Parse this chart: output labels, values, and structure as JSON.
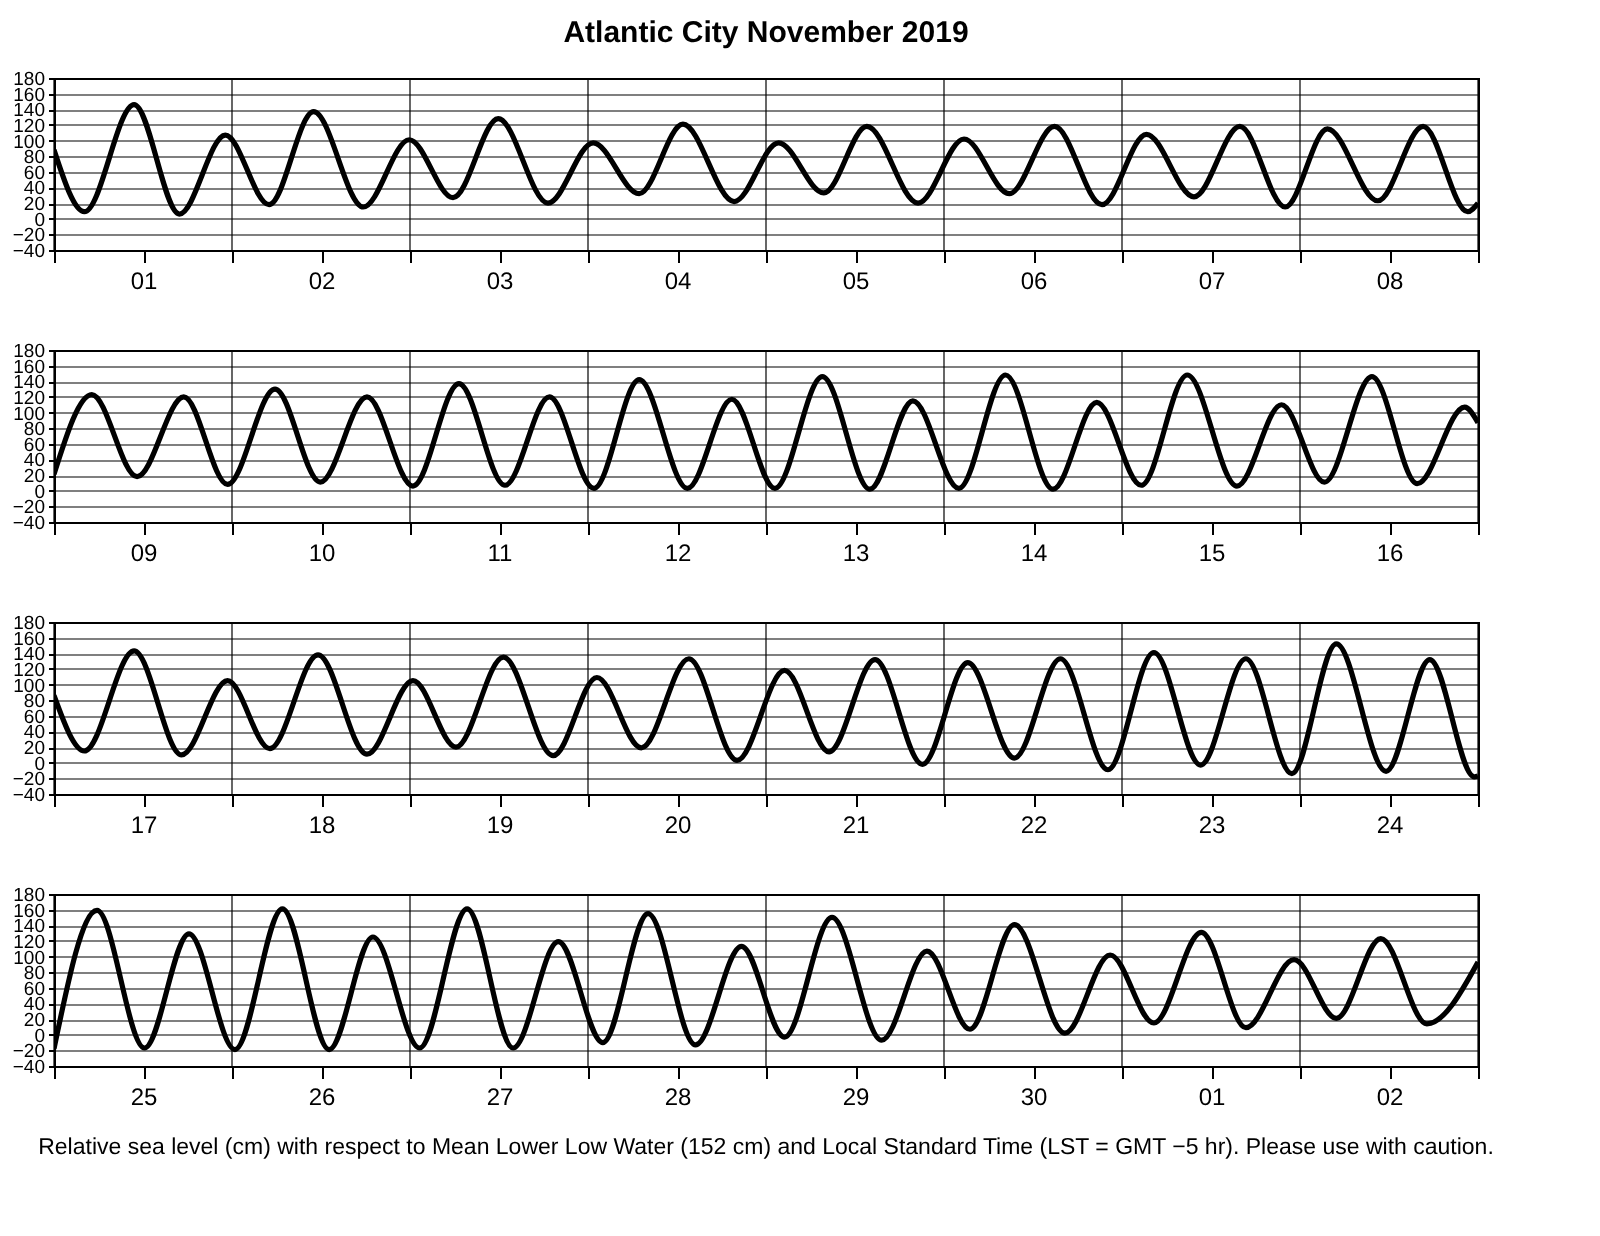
{
  "chart_data": [
    {
      "type": "line",
      "title": "Atlantic City          November   2019",
      "xlim": [
        "2019-11-01",
        "2019-11-09"
      ],
      "ylim": [
        -40,
        180
      ],
      "yticks": [
        -40,
        -20,
        0,
        20,
        40,
        60,
        80,
        100,
        120,
        140,
        160,
        180
      ],
      "grid": true,
      "xticks": [
        {
          "value": "2019-11-01",
          "label": null
        },
        {
          "value": "2019-11-01T12:00",
          "label": "01"
        },
        {
          "value": "2019-11-02",
          "label": null
        },
        {
          "value": "2019-11-02T12:00",
          "label": "02"
        },
        {
          "value": "2019-11-03",
          "label": null
        },
        {
          "value": "2019-11-03T12:00",
          "label": "03"
        },
        {
          "value": "2019-11-04",
          "label": null
        },
        {
          "value": "2019-11-04T12:00",
          "label": "04"
        },
        {
          "value": "2019-11-05",
          "label": null
        },
        {
          "value": "2019-11-05T12:00",
          "label": "05"
        },
        {
          "value": "2019-11-06",
          "label": null
        },
        {
          "value": "2019-11-06T12:00",
          "label": "06"
        },
        {
          "value": "2019-11-07",
          "label": null
        },
        {
          "value": "2019-11-07T12:00",
          "label": "07"
        },
        {
          "value": "2019-11-08",
          "label": null
        },
        {
          "value": "2019-11-08T12:00",
          "label": "08"
        },
        {
          "value": "2019-11-09",
          "label": null
        }
      ],
      "series": [
        {
          "color": "#000000",
          "x": [
            "2019-11-01T00:00",
            "2019-11-01T04:06",
            "2019-11-01T10:48",
            "2019-11-01T16:54",
            "2019-11-01T23:06",
            "2019-11-02T05:00",
            "2019-11-02T11:00",
            "2019-11-02T17:42",
            "2019-11-02T23:54",
            "2019-11-03T05:48",
            "2019-11-03T11:54",
            "2019-11-03T18:36",
            "2019-11-04T00:42",
            "2019-11-04T06:54",
            "2019-11-04T12:48",
            "2019-11-04T19:42",
            "2019-11-05T01:42",
            "2019-11-05T07:48",
            "2019-11-05T13:36",
            "2019-11-05T20:30",
            "2019-11-06T02:42",
            "2019-11-06T08:48",
            "2019-11-06T14:54",
            "2019-11-06T21:18",
            "2019-11-07T03:18",
            "2019-11-07T09:42",
            "2019-11-07T15:54",
            "2019-11-07T22:00",
            "2019-11-08T03:42",
            "2019-11-08T10:30",
            "2019-11-08T16:36",
            "2019-11-08T22:36",
            "2019-11-09T00:00"
          ],
          "values": [
            88,
            9,
            146,
            6,
            107,
            18,
            137,
            15,
            101,
            27,
            128,
            20,
            97,
            32,
            121,
            22,
            97,
            33,
            118,
            20,
            102,
            32,
            118,
            18,
            108,
            28,
            118,
            15,
            115,
            23,
            118,
            9,
            20
          ]
        }
      ]
    },
    {
      "type": "line",
      "xlim": [
        "2019-11-09",
        "2019-11-17"
      ],
      "ylim": [
        -40,
        180
      ],
      "yticks": [
        -40,
        -20,
        0,
        20,
        40,
        60,
        80,
        100,
        120,
        140,
        160,
        180
      ],
      "grid": true,
      "xticks": [
        {
          "value": "2019-11-09",
          "label": null
        },
        {
          "value": "2019-11-09T12:00",
          "label": "09"
        },
        {
          "value": "2019-11-10",
          "label": null
        },
        {
          "value": "2019-11-10T12:00",
          "label": "10"
        },
        {
          "value": "2019-11-11",
          "label": null
        },
        {
          "value": "2019-11-11T12:00",
          "label": "11"
        },
        {
          "value": "2019-11-12",
          "label": null
        },
        {
          "value": "2019-11-12T12:00",
          "label": "12"
        },
        {
          "value": "2019-11-13",
          "label": null
        },
        {
          "value": "2019-11-13T12:00",
          "label": "13"
        },
        {
          "value": "2019-11-14",
          "label": null
        },
        {
          "value": "2019-11-14T12:00",
          "label": "14"
        },
        {
          "value": "2019-11-15",
          "label": null
        },
        {
          "value": "2019-11-15T12:00",
          "label": "15"
        },
        {
          "value": "2019-11-16",
          "label": null
        },
        {
          "value": "2019-11-16T12:00",
          "label": "16"
        },
        {
          "value": "2019-11-17",
          "label": null
        }
      ],
      "series": [
        {
          "color": "#000000",
          "x": [
            "2019-11-09T00:00",
            "2019-11-09T05:06",
            "2019-11-09T11:12",
            "2019-11-09T17:30",
            "2019-11-09T23:24",
            "2019-11-10T05:48",
            "2019-11-10T11:54",
            "2019-11-10T18:12",
            "2019-11-11T00:24",
            "2019-11-11T06:36",
            "2019-11-11T12:48",
            "2019-11-11T18:48",
            "2019-11-12T00:48",
            "2019-11-12T06:54",
            "2019-11-12T13:24",
            "2019-11-12T19:24",
            "2019-11-13T01:12",
            "2019-11-13T07:36",
            "2019-11-13T14:00",
            "2019-11-13T19:48",
            "2019-11-14T02:00",
            "2019-11-14T08:18",
            "2019-11-14T14:42",
            "2019-11-14T20:36",
            "2019-11-15T02:36",
            "2019-11-15T08:48",
            "2019-11-15T15:30",
            "2019-11-15T21:30",
            "2019-11-16T03:18",
            "2019-11-16T09:42",
            "2019-11-16T15:48",
            "2019-11-16T22:12",
            "2019-11-17T00:00"
          ],
          "values": [
            21,
            123,
            18,
            120,
            8,
            130,
            11,
            120,
            6,
            137,
            7,
            120,
            3,
            142,
            3,
            117,
            3,
            146,
            2,
            115,
            3,
            148,
            2,
            113,
            7,
            148,
            6,
            110,
            11,
            146,
            9,
            107,
            87
          ]
        }
      ]
    },
    {
      "type": "line",
      "xlim": [
        "2019-11-17",
        "2019-11-25"
      ],
      "ylim": [
        -40,
        180
      ],
      "yticks": [
        -40,
        -20,
        0,
        20,
        40,
        60,
        80,
        100,
        120,
        140,
        160,
        180
      ],
      "grid": true,
      "xticks": [
        {
          "value": "2019-11-17",
          "label": null
        },
        {
          "value": "2019-11-17T12:00",
          "label": "17"
        },
        {
          "value": "2019-11-18",
          "label": null
        },
        {
          "value": "2019-11-18T12:00",
          "label": "18"
        },
        {
          "value": "2019-11-19",
          "label": null
        },
        {
          "value": "2019-11-19T12:00",
          "label": "19"
        },
        {
          "value": "2019-11-20",
          "label": null
        },
        {
          "value": "2019-11-20T12:00",
          "label": "20"
        },
        {
          "value": "2019-11-21",
          "label": null
        },
        {
          "value": "2019-11-21T12:00",
          "label": "21"
        },
        {
          "value": "2019-11-22",
          "label": null
        },
        {
          "value": "2019-11-22T12:00",
          "label": "22"
        },
        {
          "value": "2019-11-23",
          "label": null
        },
        {
          "value": "2019-11-23T12:00",
          "label": "23"
        },
        {
          "value": "2019-11-24",
          "label": null
        },
        {
          "value": "2019-11-24T12:00",
          "label": "24"
        },
        {
          "value": "2019-11-25",
          "label": null
        }
      ],
      "series": [
        {
          "color": "#000000",
          "x": [
            "2019-11-17T00:00",
            "2019-11-17T04:06",
            "2019-11-17T10:48",
            "2019-11-17T17:12",
            "2019-11-17T23:24",
            "2019-11-18T05:06",
            "2019-11-18T11:36",
            "2019-11-18T18:12",
            "2019-11-19T00:24",
            "2019-11-19T06:12",
            "2019-11-19T12:36",
            "2019-11-19T19:18",
            "2019-11-20T01:12",
            "2019-11-20T07:12",
            "2019-11-20T13:36",
            "2019-11-20T20:06",
            "2019-11-21T02:30",
            "2019-11-21T08:30",
            "2019-11-21T14:42",
            "2019-11-21T21:06",
            "2019-11-22T03:12",
            "2019-11-22T09:30",
            "2019-11-22T15:42",
            "2019-11-22T22:06",
            "2019-11-23T04:18",
            "2019-11-23T10:36",
            "2019-11-23T16:42",
            "2019-11-23T22:54",
            "2019-11-24T04:54",
            "2019-11-24T11:36",
            "2019-11-24T17:30",
            "2019-11-24T23:30",
            "2019-11-25T00:00"
          ],
          "values": [
            86,
            15,
            143,
            10,
            105,
            18,
            138,
            11,
            105,
            20,
            135,
            9,
            109,
            19,
            133,
            3,
            118,
            14,
            132,
            -2,
            128,
            6,
            133,
            -9,
            141,
            -3,
            133,
            -14,
            152,
            -11,
            132,
            -18,
            -17
          ]
        }
      ]
    },
    {
      "type": "line",
      "xlim": [
        "2019-11-25",
        "2019-12-03"
      ],
      "ylim": [
        -40,
        180
      ],
      "yticks": [
        -40,
        -20,
        0,
        20,
        40,
        60,
        80,
        100,
        120,
        140,
        160,
        180
      ],
      "grid": true,
      "xticks": [
        {
          "value": "2019-11-25",
          "label": null
        },
        {
          "value": "2019-11-25T12:00",
          "label": "25"
        },
        {
          "value": "2019-11-26",
          "label": null
        },
        {
          "value": "2019-11-26T12:00",
          "label": "26"
        },
        {
          "value": "2019-11-27",
          "label": null
        },
        {
          "value": "2019-11-27T12:00",
          "label": "27"
        },
        {
          "value": "2019-11-28",
          "label": null
        },
        {
          "value": "2019-11-28T12:00",
          "label": "28"
        },
        {
          "value": "2019-11-29",
          "label": null
        },
        {
          "value": "2019-11-29T12:00",
          "label": "29"
        },
        {
          "value": "2019-11-30",
          "label": null
        },
        {
          "value": "2019-11-30T12:00",
          "label": "30"
        },
        {
          "value": "2019-12-01",
          "label": null
        },
        {
          "value": "2019-12-01T12:00",
          "label": "01"
        },
        {
          "value": "2019-12-02",
          "label": null
        },
        {
          "value": "2019-12-02T12:00",
          "label": "02"
        },
        {
          "value": "2019-12-03",
          "label": null
        }
      ],
      "annotations": [
        "Relative sea level (cm) with respect to Mean Lower Low Water (152 cm) and Local Standard Time (LST = GMT −5 hr). Please use with caution."
      ],
      "series": [
        {
          "color": "#000000",
          "x": [
            "2019-11-25T00:00",
            "2019-11-25T05:48",
            "2019-11-25T12:12",
            "2019-11-25T18:12",
            "2019-11-26T00:24",
            "2019-11-26T06:48",
            "2019-11-26T13:06",
            "2019-11-26T19:00",
            "2019-11-27T01:18",
            "2019-11-27T07:42",
            "2019-11-27T13:54",
            "2019-11-27T20:00",
            "2019-11-28T02:00",
            "2019-11-28T08:06",
            "2019-11-28T14:30",
            "2019-11-28T20:42",
            "2019-11-29T02:30",
            "2019-11-29T08:54",
            "2019-11-29T15:36",
            "2019-11-29T21:42",
            "2019-11-30T03:30",
            "2019-11-30T09:30",
            "2019-11-30T16:18",
            "2019-11-30T22:24",
            "2019-12-01T04:18",
            "2019-12-01T10:42",
            "2019-12-01T16:42",
            "2019-12-01T23:12",
            "2019-12-02T04:54",
            "2019-12-02T10:54",
            "2019-12-02T17:06",
            "2019-12-03T00:00"
          ],
          "values": [
            -18,
            159,
            -17,
            129,
            -19,
            161,
            -19,
            125,
            -17,
            161,
            -17,
            119,
            -10,
            155,
            -13,
            113,
            -3,
            150,
            -7,
            107,
            7,
            141,
            2,
            102,
            15,
            131,
            9,
            96,
            21,
            123,
            14,
            93
          ]
        }
      ]
    }
  ]
}
